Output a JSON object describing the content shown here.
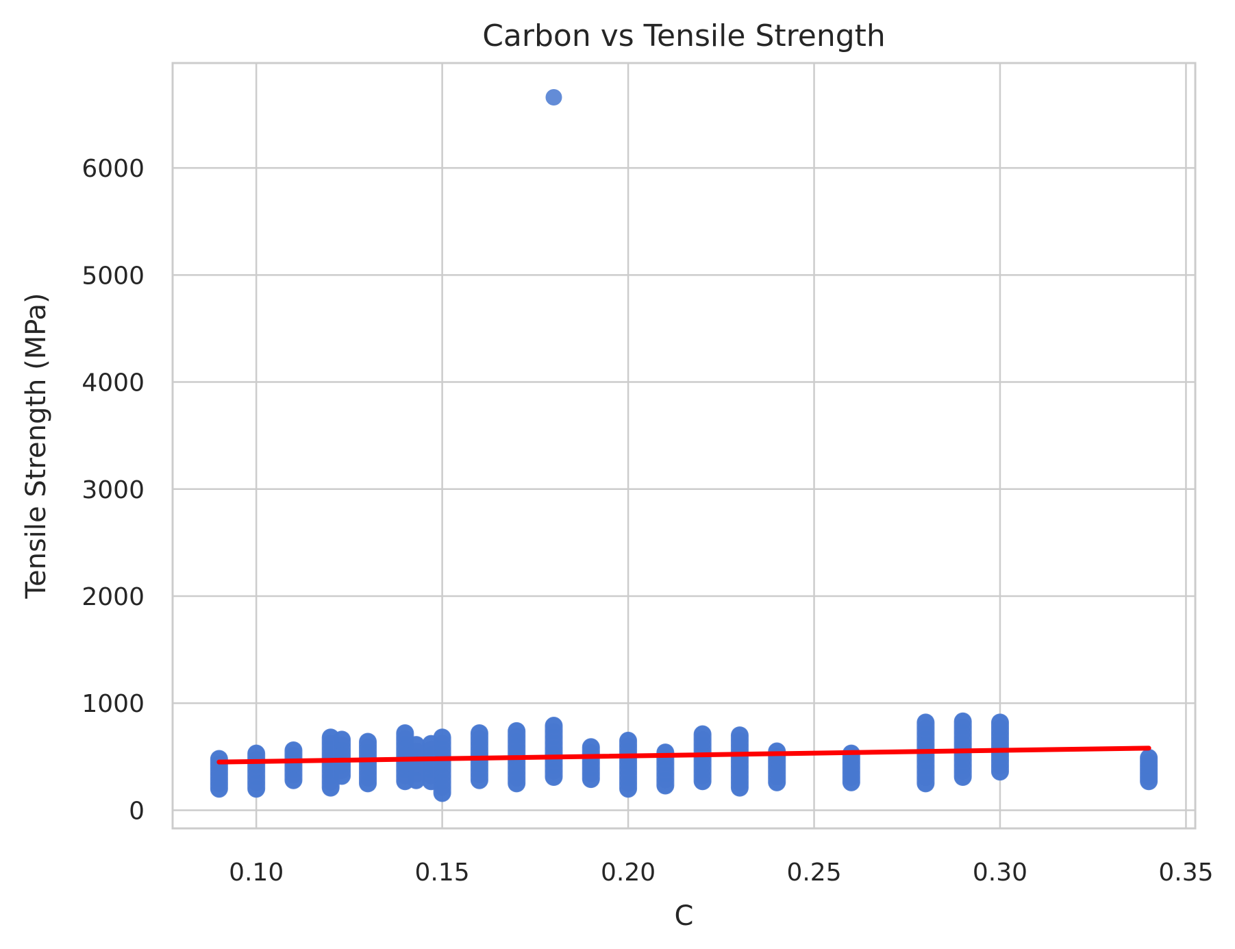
{
  "chart_data": {
    "type": "scatter",
    "title": "Carbon vs Tensile Strength",
    "xlabel": "C",
    "ylabel": "Tensile Strength (MPa)",
    "xlim": [
      0.0775,
      0.3525
    ],
    "ylim": [
      -170,
      6980
    ],
    "x_ticks": [
      0.1,
      0.15,
      0.2,
      0.25,
      0.3,
      0.35
    ],
    "x_tick_labels": [
      "0.10",
      "0.15",
      "0.20",
      "0.25",
      "0.30",
      "0.35"
    ],
    "y_ticks": [
      0,
      1000,
      2000,
      3000,
      4000,
      5000,
      6000
    ],
    "y_tick_labels": [
      "0",
      "1000",
      "2000",
      "3000",
      "4000",
      "5000",
      "6000"
    ],
    "grid": true,
    "colors": {
      "points": "#4878d0",
      "regression": "#ff0000",
      "grid": "#cccccc"
    },
    "point_groups": [
      {
        "x": 0.09,
        "y_min": 200,
        "y_max": 480
      },
      {
        "x": 0.1,
        "y_min": 200,
        "y_max": 530
      },
      {
        "x": 0.11,
        "y_min": 280,
        "y_max": 560
      },
      {
        "x": 0.12,
        "y_min": 210,
        "y_max": 680
      },
      {
        "x": 0.123,
        "y_min": 320,
        "y_max": 660
      },
      {
        "x": 0.13,
        "y_min": 250,
        "y_max": 640
      },
      {
        "x": 0.14,
        "y_min": 270,
        "y_max": 720
      },
      {
        "x": 0.143,
        "y_min": 280,
        "y_max": 610
      },
      {
        "x": 0.147,
        "y_min": 270,
        "y_max": 620
      },
      {
        "x": 0.15,
        "y_min": 160,
        "y_max": 680
      },
      {
        "x": 0.16,
        "y_min": 280,
        "y_max": 720
      },
      {
        "x": 0.17,
        "y_min": 250,
        "y_max": 740
      },
      {
        "x": 0.18,
        "y_min": 310,
        "y_max": 790
      },
      {
        "x": 0.19,
        "y_min": 290,
        "y_max": 590
      },
      {
        "x": 0.2,
        "y_min": 200,
        "y_max": 650
      },
      {
        "x": 0.21,
        "y_min": 230,
        "y_max": 540
      },
      {
        "x": 0.22,
        "y_min": 270,
        "y_max": 710
      },
      {
        "x": 0.23,
        "y_min": 210,
        "y_max": 700
      },
      {
        "x": 0.24,
        "y_min": 260,
        "y_max": 550
      },
      {
        "x": 0.26,
        "y_min": 260,
        "y_max": 530
      },
      {
        "x": 0.28,
        "y_min": 250,
        "y_max": 820
      },
      {
        "x": 0.29,
        "y_min": 310,
        "y_max": 830
      },
      {
        "x": 0.3,
        "y_min": 360,
        "y_max": 820
      },
      {
        "x": 0.34,
        "y_min": 270,
        "y_max": 490
      }
    ],
    "outliers": [
      {
        "x": 0.18,
        "y": 6660
      }
    ],
    "regression": {
      "x": [
        0.09,
        0.34
      ],
      "y": [
        450,
        580
      ]
    }
  }
}
